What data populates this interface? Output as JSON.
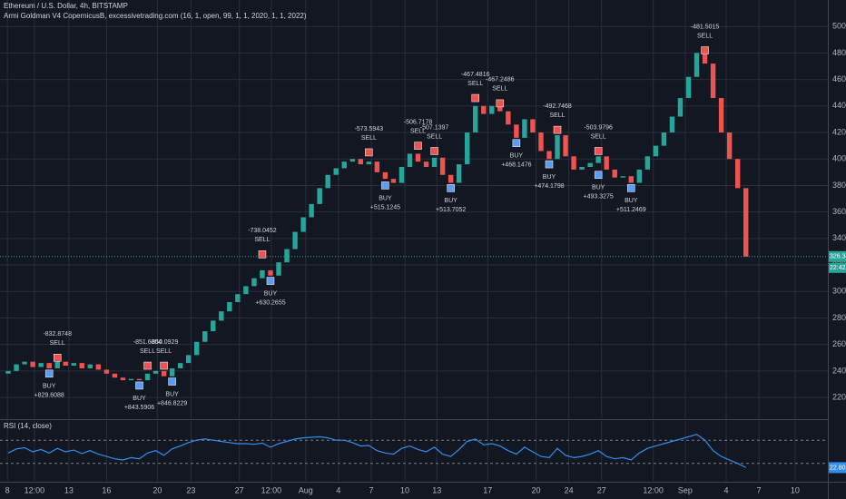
{
  "chart_data": {
    "type": "candlestick",
    "title": "Ethereum / U.S. Dollar, 4h, BITSTAMP",
    "subtitle": "Armi Goldman V4 CopernicusB, excessivetrading.com (16, 1, open, 99, 1, 1, 2020, 1, 1, 2022)",
    "up_color": "#26a69a",
    "down_color": "#ef5350",
    "grid": true,
    "x": [
      0,
      1,
      2,
      3,
      4,
      5,
      6,
      7,
      8,
      9,
      10,
      11,
      12,
      13,
      14,
      15,
      16,
      17,
      18,
      19,
      20,
      21,
      22,
      23,
      24,
      25,
      26,
      27,
      28,
      29,
      30,
      31,
      32,
      33,
      34,
      35,
      36,
      37,
      38,
      39,
      40,
      41,
      42,
      43,
      44,
      45,
      46,
      47,
      48,
      49,
      50,
      51,
      52,
      53,
      54,
      55,
      56,
      57,
      58,
      59,
      60,
      61,
      62,
      63,
      64,
      65,
      66,
      67,
      68,
      69,
      70,
      71,
      72,
      73,
      74,
      75,
      76,
      77,
      78,
      79,
      80,
      81,
      82,
      83,
      84,
      85,
      86,
      87,
      88,
      89,
      90
    ],
    "open": [
      238,
      240,
      245,
      247,
      243,
      246,
      242,
      247,
      244,
      246,
      242,
      245,
      241,
      238,
      235,
      233,
      234,
      233,
      238,
      240,
      236,
      242,
      246,
      252,
      262,
      270,
      278,
      285,
      292,
      298,
      304,
      310,
      316,
      312,
      322,
      332,
      345,
      356,
      366,
      378,
      388,
      393,
      398,
      400,
      396,
      398,
      390,
      385,
      382,
      394,
      404,
      398,
      394,
      401,
      388,
      382,
      396,
      420,
      440,
      434,
      440,
      436,
      426,
      416,
      430,
      420,
      406,
      400,
      418,
      402,
      392,
      394,
      397,
      402,
      392,
      386,
      387,
      382,
      392,
      402,
      410,
      420,
      432,
      446,
      462,
      480,
      472,
      446,
      420,
      400,
      378
    ],
    "close": [
      240,
      245,
      247,
      243,
      246,
      242,
      247,
      244,
      246,
      242,
      245,
      241,
      238,
      235,
      233,
      234,
      233,
      238,
      240,
      236,
      242,
      246,
      252,
      262,
      270,
      278,
      285,
      292,
      298,
      304,
      310,
      316,
      312,
      322,
      332,
      345,
      356,
      366,
      378,
      388,
      393,
      398,
      400,
      396,
      398,
      390,
      385,
      382,
      394,
      404,
      398,
      394,
      401,
      388,
      382,
      396,
      420,
      440,
      434,
      440,
      436,
      426,
      416,
      430,
      420,
      406,
      400,
      418,
      402,
      392,
      394,
      397,
      402,
      392,
      386,
      387,
      382,
      392,
      402,
      410,
      420,
      432,
      446,
      462,
      480,
      472,
      446,
      420,
      400,
      378,
      326.34
    ],
    "last_tag": "22:42",
    "xlim": [
      -1,
      100
    ],
    "xticks": [
      {
        "value": -0.1,
        "label": "8"
      },
      {
        "value": 3.2,
        "label": "12:00"
      },
      {
        "value": 7.4,
        "label": "13"
      },
      {
        "value": 12.0,
        "label": "16"
      },
      {
        "value": 18.2,
        "label": "20"
      },
      {
        "value": 22.3,
        "label": "23"
      },
      {
        "value": 28.2,
        "label": "27"
      },
      {
        "value": 32.1,
        "label": "12:00"
      },
      {
        "value": 36.3,
        "label": "Aug"
      },
      {
        "value": 40.3,
        "label": "4"
      },
      {
        "value": 44.3,
        "label": "7"
      },
      {
        "value": 48.4,
        "label": "10"
      },
      {
        "value": 52.3,
        "label": "13"
      },
      {
        "value": 58.5,
        "label": "17"
      },
      {
        "value": 64.4,
        "label": "20"
      },
      {
        "value": 68.4,
        "label": "24"
      },
      {
        "value": 72.4,
        "label": "27"
      },
      {
        "value": 78.7,
        "label": "12:00"
      },
      {
        "value": 82.6,
        "label": "Sep"
      },
      {
        "value": 87.6,
        "label": "4"
      },
      {
        "value": 91.6,
        "label": "7"
      },
      {
        "value": 96.0,
        "label": "10"
      }
    ],
    "ylim": [
      205,
      520
    ],
    "yticks": [
      {
        "value": 220,
        "label": "220.00"
      },
      {
        "value": 240,
        "label": "240.00"
      },
      {
        "value": 260,
        "label": "260.00"
      },
      {
        "value": 280,
        "label": "280.00"
      },
      {
        "value": 300,
        "label": "300.00"
      },
      {
        "value": 320,
        "label": "320.00"
      },
      {
        "value": 340,
        "label": "340.00"
      },
      {
        "value": 360,
        "label": "360.00"
      },
      {
        "value": 380,
        "label": "380.00"
      },
      {
        "value": 400,
        "label": "400.00"
      },
      {
        "value": 420,
        "label": "420.00"
      },
      {
        "value": 440,
        "label": "440.00"
      },
      {
        "value": 460,
        "label": "460.00"
      },
      {
        "value": 480,
        "label": "480.00"
      },
      {
        "value": 500,
        "label": "500.00"
      }
    ],
    "signals": [
      {
        "side": "SELL",
        "label": "-832.8748",
        "x": 6,
        "price": 250
      },
      {
        "side": "BUY",
        "label": "+829.6088",
        "x": 5,
        "price": 238
      },
      {
        "side": "BUY",
        "label": "+843.5906",
        "x": 16,
        "price": 229
      },
      {
        "side": "SELL",
        "label": "-851.6804",
        "x": 17,
        "price": 244
      },
      {
        "side": "SELL",
        "label": "-850.0929",
        "x": 19,
        "price": 244
      },
      {
        "side": "BUY",
        "label": "+846.8229",
        "x": 20,
        "price": 232
      },
      {
        "side": "SELL",
        "label": "-738.0452",
        "x": 31,
        "price": 328
      },
      {
        "side": "BUY",
        "label": "+630.2655",
        "x": 32,
        "price": 308
      },
      {
        "side": "SELL",
        "label": "-573.5943",
        "x": 44,
        "price": 405
      },
      {
        "side": "BUY",
        "label": "+515.1245",
        "x": 46,
        "price": 380
      },
      {
        "side": "SELL",
        "label": "-506.7178",
        "x": 50,
        "price": 410
      },
      {
        "side": "SELL",
        "label": "-507.1397",
        "x": 52,
        "price": 406
      },
      {
        "side": "BUY",
        "label": "+513.7052",
        "x": 54,
        "price": 378
      },
      {
        "side": "SELL",
        "label": "-467.4816",
        "x": 57,
        "price": 446
      },
      {
        "side": "SELL",
        "label": "-467.2486",
        "x": 60,
        "price": 442
      },
      {
        "side": "BUY",
        "label": "+468.1476",
        "x": 62,
        "price": 412
      },
      {
        "side": "SELL",
        "label": "-492.7468",
        "x": 67,
        "price": 422
      },
      {
        "side": "BUY",
        "label": "+474.1798",
        "x": 66,
        "price": 396
      },
      {
        "side": "SELL",
        "label": "-503.9796",
        "x": 72,
        "price": 406
      },
      {
        "side": "BUY",
        "label": "+493.3275",
        "x": 72,
        "price": 388
      },
      {
        "side": "BUY",
        "label": "+511.2469",
        "x": 76,
        "price": 378
      },
      {
        "side": "SELL",
        "label": "-481.5015",
        "x": 85,
        "price": 482
      }
    ],
    "rsi": {
      "title": "RSI (14, close)",
      "color": "#2f8ff0",
      "ylim": [
        0,
        100
      ],
      "bands": [
        70,
        30
      ],
      "tag": "22.80",
      "values": [
        48,
        55,
        57,
        50,
        54,
        48,
        56,
        50,
        53,
        47,
        52,
        46,
        42,
        38,
        36,
        40,
        38,
        48,
        52,
        44,
        55,
        60,
        66,
        70,
        72,
        70,
        68,
        66,
        64,
        64,
        63,
        65,
        58,
        64,
        68,
        72,
        74,
        75,
        76,
        74,
        70,
        70,
        66,
        60,
        61,
        52,
        48,
        46,
        56,
        60,
        54,
        50,
        58,
        46,
        42,
        54,
        68,
        72,
        62,
        64,
        60,
        52,
        46,
        58,
        50,
        42,
        40,
        56,
        44,
        40,
        42,
        46,
        52,
        42,
        38,
        40,
        36,
        48,
        56,
        60,
        64,
        68,
        72,
        76,
        80,
        70,
        52,
        42,
        36,
        30,
        22.8
      ]
    }
  }
}
